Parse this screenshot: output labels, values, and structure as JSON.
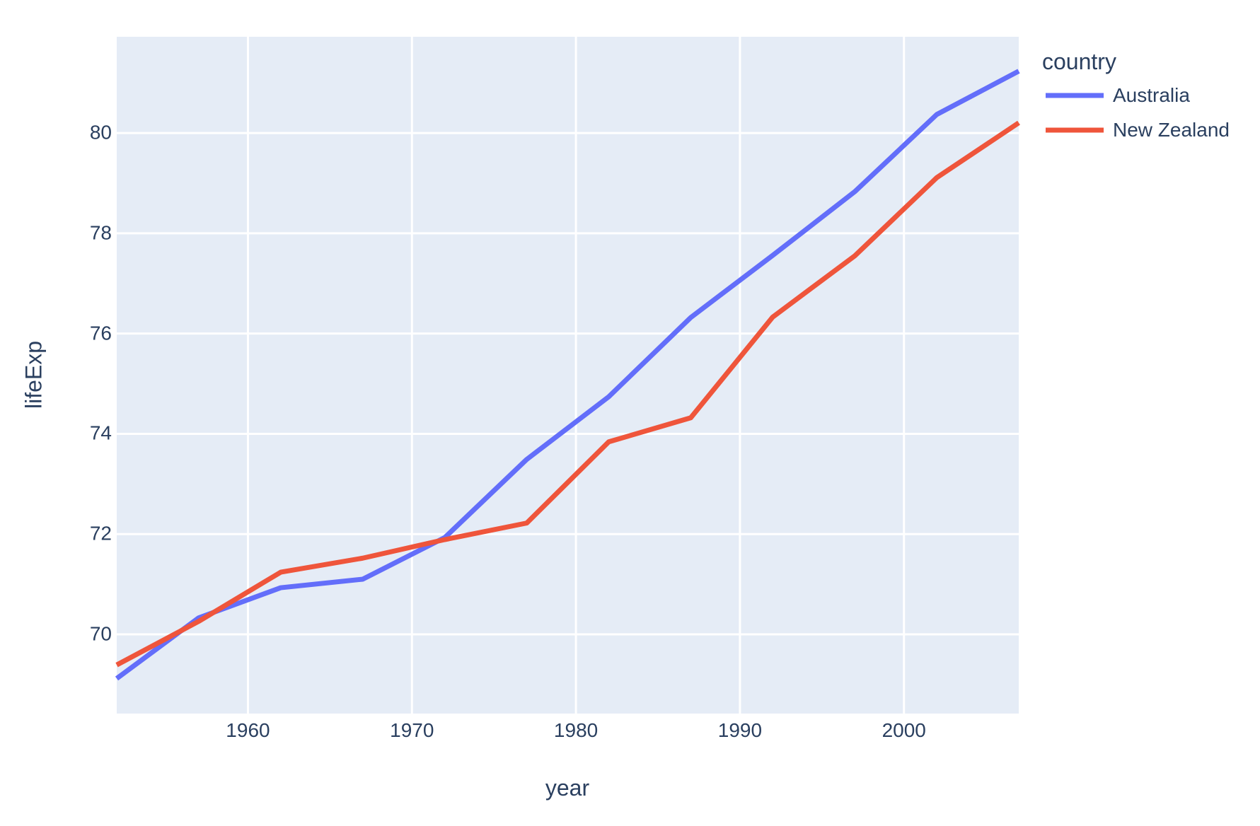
{
  "figure": {
    "plot_bgcolor": "#e5ecf6",
    "grid_color": "#ffffff",
    "text_color": "#2a3f5f",
    "page_bgcolor": "#ffffff"
  },
  "chart_data": {
    "type": "line",
    "title": "",
    "xlabel": "year",
    "ylabel": "lifeExp",
    "legend_title": "country",
    "legend_position": "top-right-outside",
    "grid": true,
    "x": [
      1952,
      1957,
      1962,
      1967,
      1972,
      1977,
      1982,
      1987,
      1992,
      1997,
      2002,
      2007
    ],
    "series": [
      {
        "name": "Australia",
        "color": "#636EFA",
        "values": [
          69.12,
          70.33,
          70.93,
          71.1,
          71.93,
          73.49,
          74.74,
          76.32,
          77.56,
          78.83,
          80.37,
          81.235
        ]
      },
      {
        "name": "New Zealand",
        "color": "#EF553B",
        "values": [
          69.39,
          70.26,
          71.24,
          71.52,
          71.89,
          72.22,
          73.84,
          74.32,
          76.33,
          77.55,
          79.11,
          80.204
        ]
      }
    ],
    "xlim": [
      1952,
      2007
    ],
    "ylim": [
      68.42,
      81.92
    ],
    "x_ticks": [
      1960,
      1970,
      1980,
      1990,
      2000
    ],
    "y_ticks": [
      70,
      72,
      74,
      76,
      78,
      80
    ]
  }
}
